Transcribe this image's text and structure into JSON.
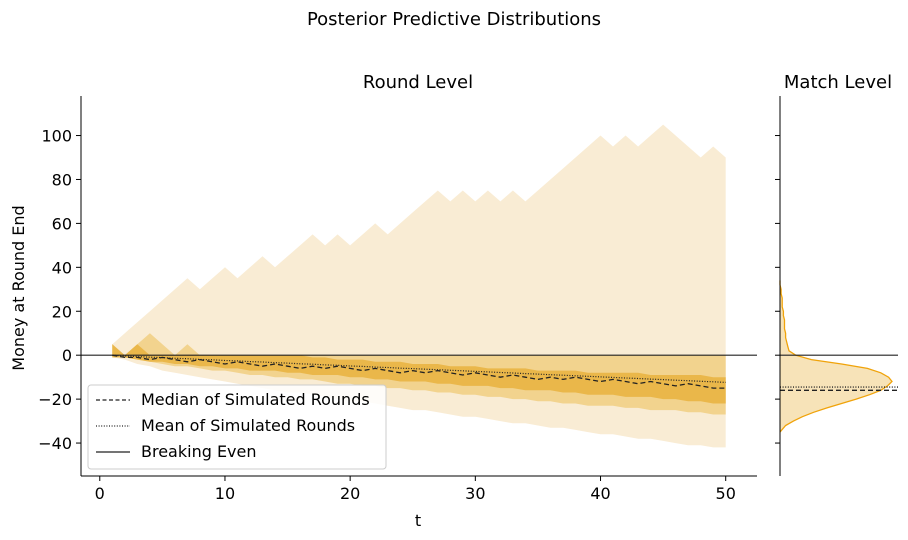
{
  "figure": {
    "suptitle": "Posterior Predictive Distributions"
  },
  "colors": {
    "band_outer": "#f9ecd4",
    "band_mid": "#f2d38e",
    "band_inner": "#eab74a",
    "kde_line": "#f0a30a",
    "kde_fill": "#f7e3b8",
    "line": "#222222"
  },
  "chart_data": [
    {
      "type": "area",
      "title": "Round Level",
      "xlabel": "t",
      "ylabel": "Money at Round End",
      "xlim": [
        -1.5,
        52.5
      ],
      "ylim": [
        -55,
        118
      ],
      "xticks": [
        0,
        10,
        20,
        30,
        40,
        50
      ],
      "yticks": [
        -40,
        -20,
        0,
        20,
        40,
        60,
        80,
        100
      ],
      "xtick_labels": [
        "0",
        "10",
        "20",
        "30",
        "40",
        "50"
      ],
      "ytick_labels": [
        "−40",
        "−20",
        "0",
        "20",
        "40",
        "60",
        "80",
        "100"
      ],
      "grid": false,
      "legend": {
        "placement": "lower-left",
        "entries": [
          {
            "label": "Median of Simulated Rounds",
            "style": "dashed"
          },
          {
            "label": "Mean of Simulated Rounds",
            "style": "dotted"
          },
          {
            "label": "Breaking Even",
            "style": "solid"
          }
        ]
      },
      "x": [
        1,
        2,
        3,
        4,
        5,
        6,
        7,
        8,
        9,
        10,
        11,
        12,
        13,
        14,
        15,
        16,
        17,
        18,
        19,
        20,
        21,
        22,
        23,
        24,
        25,
        26,
        27,
        28,
        29,
        30,
        31,
        32,
        33,
        34,
        35,
        36,
        37,
        38,
        39,
        40,
        41,
        42,
        43,
        44,
        45,
        46,
        47,
        48,
        49,
        50
      ],
      "bands": [
        {
          "level": "outer",
          "upper": [
            5,
            10,
            15,
            20,
            25,
            30,
            35,
            30,
            35,
            40,
            35,
            40,
            45,
            40,
            45,
            50,
            55,
            50,
            55,
            50,
            55,
            60,
            55,
            60,
            65,
            70,
            75,
            70,
            75,
            70,
            75,
            70,
            75,
            70,
            75,
            80,
            85,
            90,
            95,
            100,
            95,
            100,
            95,
            100,
            105,
            100,
            95,
            90,
            95,
            90
          ],
          "lower": [
            -1,
            -2,
            -4,
            -5,
            -7,
            -8,
            -9,
            -10,
            -11,
            -12,
            -13,
            -14,
            -15,
            -16,
            -17,
            -17,
            -18,
            -19,
            -20,
            -21,
            -21,
            -22,
            -23,
            -24,
            -25,
            -25,
            -26,
            -27,
            -28,
            -28,
            -29,
            -30,
            -31,
            -31,
            -32,
            -33,
            -33,
            -34,
            -35,
            -36,
            -36,
            -37,
            -38,
            -38,
            -39,
            -40,
            -41,
            -41,
            -42,
            -42
          ]
        },
        {
          "level": "middle",
          "upper": [
            5,
            0,
            5,
            10,
            5,
            0,
            5,
            0,
            0,
            0,
            0,
            0,
            0,
            0,
            0,
            0,
            0,
            0,
            0,
            0,
            0,
            0,
            0,
            0,
            0,
            0,
            0,
            0,
            0,
            0,
            0,
            0,
            0,
            0,
            0,
            0,
            0,
            0,
            0,
            0,
            0,
            0,
            0,
            0,
            0,
            0,
            0,
            0,
            0,
            0
          ],
          "lower": [
            -1,
            -1,
            -2,
            -3,
            -4,
            -5,
            -5,
            -6,
            -7,
            -7,
            -8,
            -9,
            -9,
            -10,
            -10,
            -11,
            -11,
            -12,
            -13,
            -13,
            -14,
            -14,
            -15,
            -15,
            -16,
            -16,
            -17,
            -17,
            -18,
            -18,
            -19,
            -19,
            -20,
            -20,
            -21,
            -21,
            -22,
            -22,
            -23,
            -23,
            -23,
            -24,
            -24,
            -25,
            -25,
            -25,
            -26,
            -26,
            -27,
            -27
          ]
        },
        {
          "level": "inner",
          "upper": [
            5,
            0,
            5,
            0,
            0,
            0,
            0,
            0,
            0,
            0,
            0,
            0,
            0,
            0,
            0,
            0,
            -1,
            -1,
            -2,
            -2,
            -2,
            -3,
            -3,
            -3,
            -4,
            -4,
            -4,
            -5,
            -5,
            -5,
            -6,
            -6,
            -6,
            -6,
            -7,
            -7,
            -7,
            -7,
            -8,
            -8,
            -8,
            -8,
            -8,
            -9,
            -9,
            -9,
            -9,
            -9,
            -10,
            -10
          ],
          "lower": [
            -1,
            -1,
            -2,
            -3,
            -3,
            -4,
            -4,
            -5,
            -5,
            -6,
            -6,
            -7,
            -7,
            -7,
            -8,
            -8,
            -9,
            -9,
            -9,
            -10,
            -10,
            -11,
            -11,
            -12,
            -12,
            -12,
            -13,
            -13,
            -14,
            -14,
            -14,
            -15,
            -15,
            -16,
            -16,
            -16,
            -17,
            -17,
            -18,
            -18,
            -18,
            -19,
            -19,
            -19,
            -20,
            -20,
            -21,
            -21,
            -22,
            -22
          ]
        }
      ],
      "median": [
        0,
        -1,
        -1,
        -2,
        -1,
        -2,
        -3,
        -2,
        -3,
        -4,
        -3,
        -4,
        -5,
        -4,
        -5,
        -6,
        -5,
        -6,
        -5,
        -6,
        -7,
        -6,
        -7,
        -8,
        -7,
        -8,
        -7,
        -8,
        -9,
        -8,
        -9,
        -10,
        -9,
        -10,
        -11,
        -10,
        -11,
        -10,
        -11,
        -12,
        -11,
        -12,
        -13,
        -12,
        -13,
        -14,
        -13,
        -14,
        -15,
        -15
      ],
      "mean": [
        0,
        -0.4,
        -0.6,
        -0.9,
        -1.1,
        -1.4,
        -1.6,
        -1.9,
        -2.1,
        -2.4,
        -2.6,
        -2.9,
        -3.1,
        -3.4,
        -3.6,
        -3.9,
        -4.1,
        -4.4,
        -4.6,
        -4.9,
        -5.1,
        -5.4,
        -5.6,
        -5.9,
        -6.1,
        -6.4,
        -6.6,
        -6.9,
        -7.1,
        -7.4,
        -7.6,
        -7.9,
        -8.1,
        -8.4,
        -8.6,
        -8.9,
        -9.1,
        -9.4,
        -9.6,
        -9.9,
        -10.1,
        -10.4,
        -10.6,
        -10.9,
        -11.1,
        -11.4,
        -11.6,
        -11.9,
        -12.1,
        -12.4
      ],
      "breaking_even": 0
    },
    {
      "type": "area",
      "title": "Match Level",
      "ylim": [
        -55,
        118
      ],
      "yticks": [
        -40,
        -20,
        0,
        20,
        40,
        60,
        80,
        100
      ],
      "grid": false,
      "density": {
        "y": [
          -35,
          -32,
          -30,
          -28,
          -26,
          -24,
          -22,
          -20,
          -18,
          -16,
          -14,
          -12,
          -10,
          -8,
          -6,
          -4,
          -2,
          0,
          2,
          4,
          6,
          8,
          10,
          12,
          14,
          16,
          18,
          20,
          22,
          24,
          26,
          28,
          30,
          32,
          34
        ],
        "density": [
          0.0,
          0.05,
          0.12,
          0.2,
          0.3,
          0.42,
          0.55,
          0.68,
          0.8,
          0.9,
          0.96,
          1.0,
          0.97,
          0.9,
          0.78,
          0.55,
          0.28,
          0.14,
          0.08,
          0.07,
          0.06,
          0.05,
          0.05,
          0.04,
          0.04,
          0.04,
          0.03,
          0.03,
          0.02,
          0.02,
          0.02,
          0.01,
          0.01,
          0.0,
          0.0
        ]
      },
      "median": -16,
      "mean": -14.5,
      "breaking_even": 0
    }
  ]
}
